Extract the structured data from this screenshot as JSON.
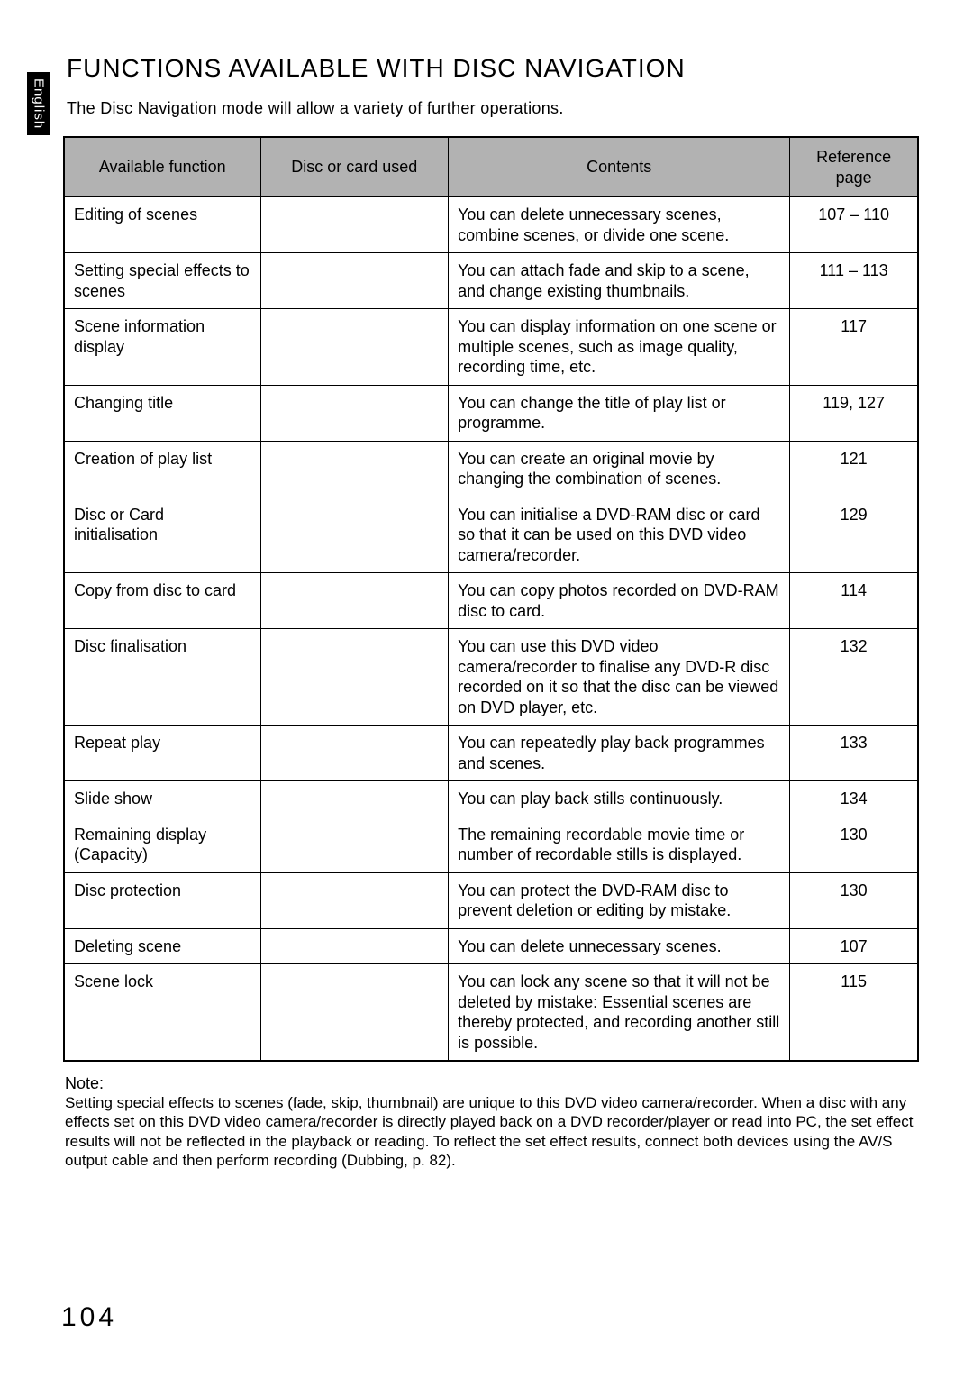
{
  "side_tab": {
    "label": "English"
  },
  "title": "FUNCTIONS AVAILABLE WITH DISC NAVIGATION",
  "intro": "The Disc Navigation mode will allow a variety of further operations.",
  "table": {
    "headers": {
      "function": "Available function",
      "media": "Disc or card used",
      "contents": "Contents",
      "reference": "Reference page"
    },
    "rows": [
      {
        "function": "Editing of scenes",
        "media": "",
        "contents": "You can delete unnecessary scenes, combine scenes, or divide one scene.",
        "reference": "107 – 110"
      },
      {
        "function": "Setting special effects to scenes",
        "media": "",
        "contents": "You can attach fade and skip to a scene, and change existing thumbnails.",
        "reference": "111 – 113"
      },
      {
        "function": "Scene information display",
        "media": "",
        "contents": "You can display information on one scene or multiple scenes, such as image quality, recording time, etc.",
        "reference": "117"
      },
      {
        "function": "Changing title",
        "media": "",
        "contents": "You can change the title of play list or programme.",
        "reference": "119, 127"
      },
      {
        "function": "Creation of play list",
        "media": "",
        "contents": "You can create an original movie by changing the combination of scenes.",
        "reference": "121"
      },
      {
        "function": "Disc or Card initialisation",
        "media": "",
        "contents": "You can initialise a DVD-RAM disc or card so that it can be used on this DVD video camera/recorder.",
        "reference": "129"
      },
      {
        "function": "Copy from disc to card",
        "media": "",
        "contents": "You can copy photos recorded on DVD-RAM disc to card.",
        "reference": "114"
      },
      {
        "function": "Disc finalisation",
        "media": "",
        "contents": "You can use this DVD video camera/recorder to finalise any DVD-R disc recorded on it so that the disc can be viewed on DVD player, etc.",
        "reference": "132"
      },
      {
        "function": "Repeat play",
        "media": "",
        "contents": "You can repeatedly play back programmes and scenes.",
        "reference": "133"
      },
      {
        "function": "Slide show",
        "media": "",
        "contents": "You can play back stills continuously.",
        "reference": "134"
      },
      {
        "function": "Remaining display (Capacity)",
        "media": "",
        "contents": "The remaining recordable movie time or number of recordable stills is displayed.",
        "reference": "130"
      },
      {
        "function": "Disc protection",
        "media": "",
        "contents": "You can protect the DVD-RAM disc to prevent deletion or editing by mistake.",
        "reference": "130"
      },
      {
        "function": "Deleting scene",
        "media": "",
        "contents": "You can delete unnecessary scenes.",
        "reference": "107"
      },
      {
        "function": "Scene lock",
        "media": "",
        "contents": "You can lock any scene so that it will not be deleted by mistake: Essential scenes are thereby protected, and recording another still is possible.",
        "reference": "115"
      }
    ]
  },
  "note": {
    "heading": "Note:",
    "text": "Setting special effects to scenes (fade, skip, thumbnail) are unique to this DVD video camera/recorder. When a disc with any effects set on this DVD video camera/recorder is directly played back on a DVD recorder/player or read into PC, the set effect results will not be reflected in the playback or reading. To reflect the set effect results, connect both devices using the AV/S output cable and then perform recording (Dubbing, p. 82)."
  },
  "page_number": "104",
  "styling": {
    "page_bg": "#ffffff",
    "header_bg": "#b2b2b2",
    "border_color": "#000000",
    "tab_bg": "#000000",
    "tab_text": "#ffffff",
    "body_font": "Arial, Helvetica, sans-serif",
    "title_fontsize": 28,
    "body_fontsize": 18,
    "note_fontsize": 17,
    "pagenum_fontsize": 30
  }
}
